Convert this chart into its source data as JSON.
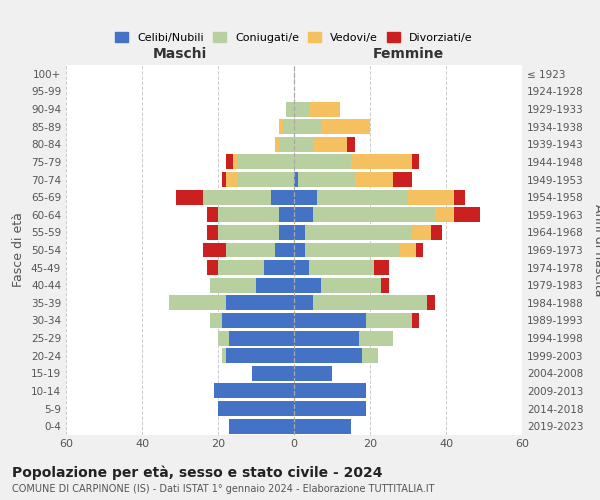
{
  "age_groups": [
    "0-4",
    "5-9",
    "10-14",
    "15-19",
    "20-24",
    "25-29",
    "30-34",
    "35-39",
    "40-44",
    "45-49",
    "50-54",
    "55-59",
    "60-64",
    "65-69",
    "70-74",
    "75-79",
    "80-84",
    "85-89",
    "90-94",
    "95-99",
    "100+"
  ],
  "birth_years": [
    "2019-2023",
    "2014-2018",
    "2009-2013",
    "2004-2008",
    "1999-2003",
    "1994-1998",
    "1989-1993",
    "1984-1988",
    "1979-1983",
    "1974-1978",
    "1969-1973",
    "1964-1968",
    "1959-1963",
    "1954-1958",
    "1949-1953",
    "1944-1948",
    "1939-1943",
    "1934-1938",
    "1929-1933",
    "1924-1928",
    "≤ 1923"
  ],
  "colors": {
    "celibe": "#4472c4",
    "coniugato": "#b8cfa0",
    "vedovo": "#f4c060",
    "divorziato": "#cc2020"
  },
  "maschi": {
    "celibe": [
      17,
      20,
      21,
      11,
      18,
      17,
      19,
      18,
      10,
      8,
      5,
      4,
      4,
      6,
      0,
      0,
      0,
      0,
      0,
      0,
      0
    ],
    "coniugato": [
      0,
      0,
      0,
      0,
      1,
      3,
      3,
      15,
      12,
      12,
      13,
      16,
      16,
      18,
      15,
      15,
      4,
      3,
      2,
      0,
      0
    ],
    "vedovo": [
      0,
      0,
      0,
      0,
      0,
      0,
      0,
      0,
      0,
      0,
      0,
      0,
      0,
      0,
      3,
      1,
      1,
      1,
      0,
      0,
      0
    ],
    "divorziato": [
      0,
      0,
      0,
      0,
      0,
      0,
      0,
      0,
      0,
      3,
      6,
      3,
      3,
      7,
      1,
      2,
      0,
      0,
      0,
      0,
      0
    ]
  },
  "femmine": {
    "nubile": [
      15,
      19,
      19,
      10,
      18,
      17,
      19,
      5,
      7,
      4,
      3,
      3,
      5,
      6,
      1,
      0,
      0,
      0,
      0,
      0,
      0
    ],
    "coniugata": [
      0,
      0,
      0,
      0,
      4,
      9,
      12,
      30,
      16,
      17,
      25,
      28,
      32,
      24,
      15,
      15,
      5,
      7,
      4,
      0,
      0
    ],
    "vedova": [
      0,
      0,
      0,
      0,
      0,
      0,
      0,
      0,
      0,
      0,
      4,
      5,
      5,
      12,
      10,
      16,
      9,
      13,
      8,
      0,
      0
    ],
    "divorziata": [
      0,
      0,
      0,
      0,
      0,
      0,
      2,
      2,
      2,
      4,
      2,
      3,
      7,
      3,
      5,
      2,
      2,
      0,
      0,
      0,
      0
    ]
  },
  "xlim": 60,
  "title": "Popolazione per età, sesso e stato civile - 2024",
  "subtitle": "COMUNE DI CARPINONE (IS) - Dati ISTAT 1° gennaio 2024 - Elaborazione TUTTITALIA.IT",
  "ylabel_left": "Fasce di età",
  "ylabel_right": "Anni di nascita",
  "xlabel_left": "Maschi",
  "xlabel_right": "Femmine",
  "bg_color": "#f0f0f0",
  "plot_bg": "#ffffff"
}
